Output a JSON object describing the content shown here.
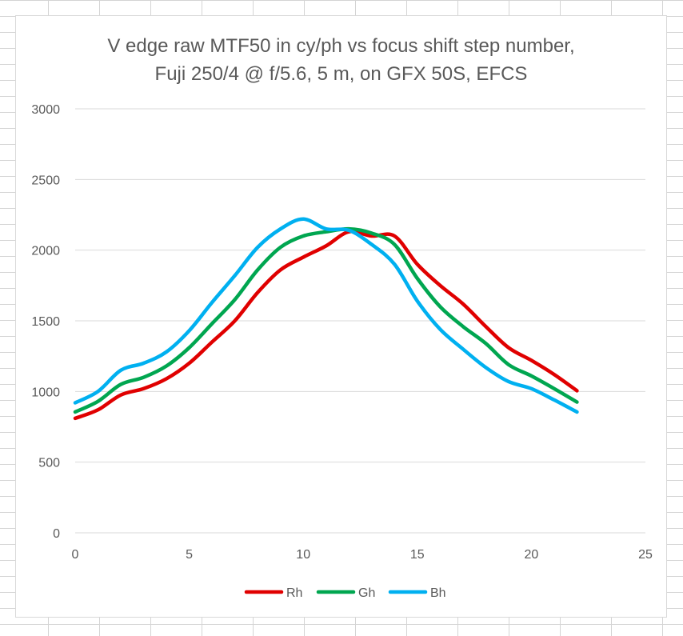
{
  "chart_data": {
    "type": "line",
    "title": [
      "V edge raw MTF50 in cy/ph vs focus shift step number,",
      "Fuji 250/4 @ f/5.6, 5 m, on GFX 50S, EFCS"
    ],
    "xlabel": "",
    "ylabel": "",
    "xlim": [
      0,
      25
    ],
    "ylim": [
      0,
      3000
    ],
    "xticks": [
      0,
      5,
      10,
      15,
      20,
      25
    ],
    "yticks": [
      0,
      500,
      1000,
      1500,
      2000,
      2500,
      3000
    ],
    "grid": "horizontal",
    "legend_position": "bottom",
    "x": [
      0,
      1,
      2,
      3,
      4,
      5,
      6,
      7,
      8,
      9,
      10,
      11,
      12,
      13,
      14,
      15,
      16,
      17,
      18,
      19,
      20,
      21,
      22
    ],
    "series": [
      {
        "name": "Rh",
        "color": "#e00000",
        "values": [
          810,
          870,
          975,
          1020,
          1090,
          1200,
          1350,
          1500,
          1700,
          1860,
          1950,
          2030,
          2130,
          2100,
          2100,
          1900,
          1750,
          1620,
          1460,
          1310,
          1220,
          1120,
          1005
        ]
      },
      {
        "name": "Gh",
        "color": "#00a650",
        "values": [
          855,
          930,
          1050,
          1100,
          1180,
          1310,
          1480,
          1650,
          1860,
          2020,
          2100,
          2130,
          2150,
          2120,
          2040,
          1800,
          1600,
          1460,
          1340,
          1190,
          1110,
          1020,
          925
        ]
      },
      {
        "name": "Bh",
        "color": "#00b0f0",
        "values": [
          920,
          1000,
          1150,
          1200,
          1280,
          1430,
          1630,
          1820,
          2020,
          2150,
          2220,
          2150,
          2140,
          2040,
          1900,
          1640,
          1440,
          1300,
          1170,
          1070,
          1020,
          940,
          855
        ]
      }
    ]
  }
}
